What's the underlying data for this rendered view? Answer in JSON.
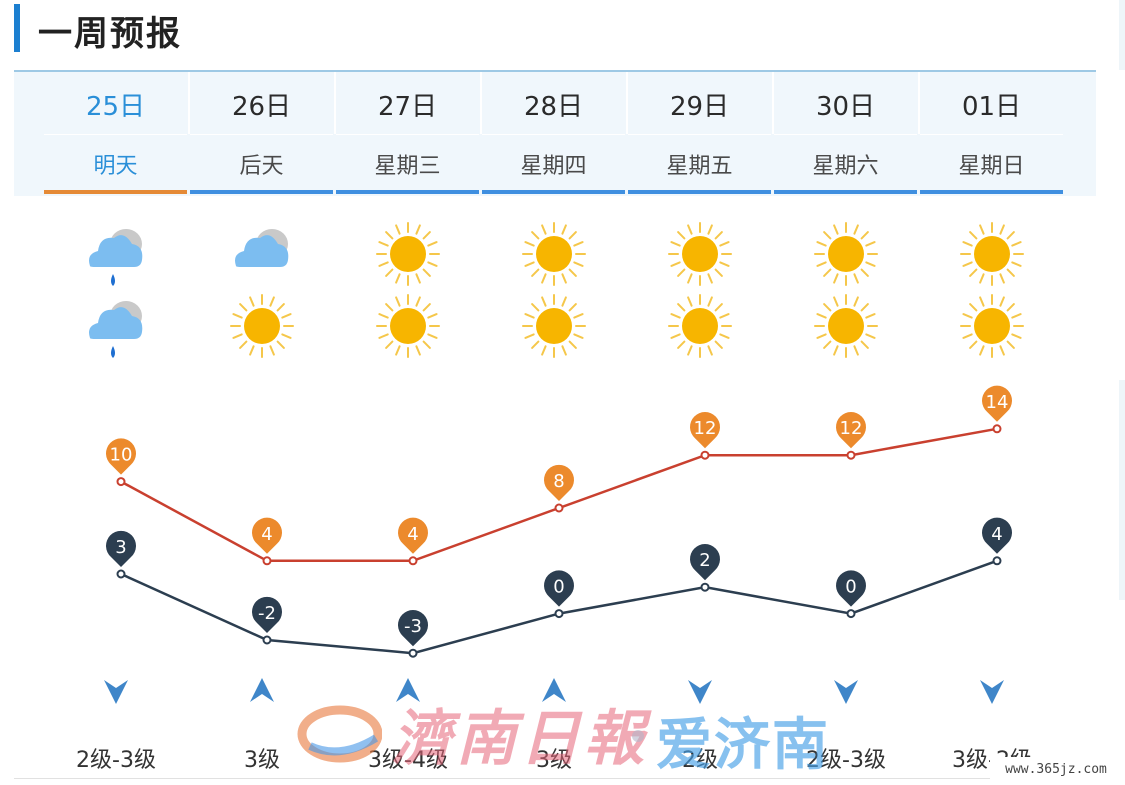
{
  "header": {
    "title": "一周预报"
  },
  "days": [
    {
      "date": "25日",
      "weekday": "明天",
      "active": true,
      "day_icon": "rain-cloud-icon",
      "night_icon": "rain-cloud-icon",
      "high": "10",
      "low": "3",
      "wind_dir": "down",
      "wind": "2级-3级"
    },
    {
      "date": "26日",
      "weekday": "后天",
      "active": false,
      "day_icon": "cloud-icon",
      "night_icon": "sun-icon",
      "high": "4",
      "low": "-2",
      "wind_dir": "up",
      "wind": "3级"
    },
    {
      "date": "27日",
      "weekday": "星期三",
      "active": false,
      "day_icon": "sun-icon",
      "night_icon": "sun-icon",
      "high": "4",
      "low": "-3",
      "wind_dir": "up",
      "wind": "3级-4级"
    },
    {
      "date": "28日",
      "weekday": "星期四",
      "active": false,
      "day_icon": "sun-icon",
      "night_icon": "sun-icon",
      "high": "8",
      "low": "0",
      "wind_dir": "up",
      "wind": "3级"
    },
    {
      "date": "29日",
      "weekday": "星期五",
      "active": false,
      "day_icon": "sun-icon",
      "night_icon": "sun-icon",
      "high": "12",
      "low": "2",
      "wind_dir": "down",
      "wind": "2级"
    },
    {
      "date": "30日",
      "weekday": "星期六",
      "active": false,
      "day_icon": "sun-icon",
      "night_icon": "sun-icon",
      "high": "12",
      "low": "0",
      "wind_dir": "down",
      "wind": "2级-3级"
    },
    {
      "date": "01日",
      "weekday": "星期日",
      "active": false,
      "day_icon": "sun-icon",
      "night_icon": "sun-icon",
      "high": "14",
      "low": "4",
      "wind_dir": "down",
      "wind": "3级-2级"
    }
  ],
  "chart_data": {
    "type": "line",
    "categories": [
      "25日",
      "26日",
      "27日",
      "28日",
      "29日",
      "30日",
      "01日"
    ],
    "series": [
      {
        "values": [
          10,
          4,
          4,
          8,
          12,
          12,
          14
        ],
        "color": "#c9402f",
        "marker_color": "#ec8a2c"
      },
      {
        "values": [
          3,
          -2,
          -3,
          0,
          2,
          0,
          4
        ],
        "color": "#2c3e50",
        "marker_color": "#2c3e50"
      }
    ]
  },
  "watermark": {
    "brand1": "濟南日報",
    "brand2": "爱济南",
    "url": "www.365jz.com"
  },
  "colors": {
    "accent": "#1c7fd0",
    "active_tab": "#e58a36",
    "tab_underline": "#3f8fe0"
  }
}
